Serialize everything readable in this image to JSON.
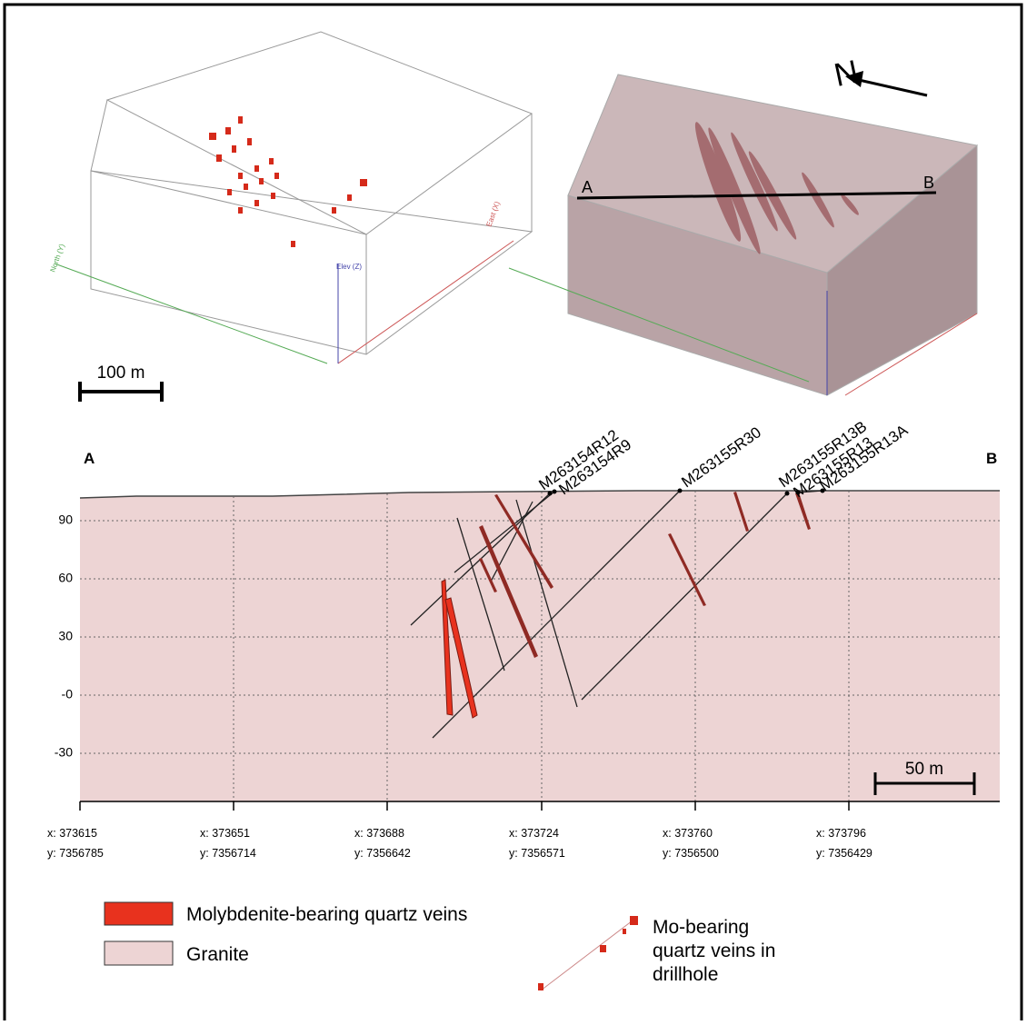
{
  "views": {
    "scale_bar": "100 m",
    "north": "N",
    "section_start": "A",
    "section_end": "B",
    "elevation_axis": "Elev (Z)",
    "north_axis": "North (Y)",
    "east_axis": "East (X)"
  },
  "section": {
    "left_end": "A",
    "right_end": "B",
    "yticks": [
      "90",
      "60",
      "30",
      "-0",
      "-30"
    ],
    "xticks": [
      {
        "x": "x: 373615",
        "y": "y: 7356785"
      },
      {
        "x": "x: 373651",
        "y": "y: 7356714"
      },
      {
        "x": "x: 373688",
        "y": "y: 7356642"
      },
      {
        "x": "x: 373724",
        "y": "y: 7356571"
      },
      {
        "x": "x: 373760",
        "y": "y: 7356500"
      },
      {
        "x": "x: 373796",
        "y": "y: 7356429"
      }
    ],
    "drillholes": [
      "M263154R12",
      "M263154R9",
      "M263155R30",
      "M263155R13B",
      "M263155R13",
      "M263155R13A"
    ],
    "scale_bar": "50 m"
  },
  "legend": {
    "items": [
      "Molybdenite-bearing quartz veins",
      "Granite"
    ],
    "drillhole_symbol": [
      "Mo-bearing",
      "quartz veins in",
      "drillhole"
    ]
  }
}
